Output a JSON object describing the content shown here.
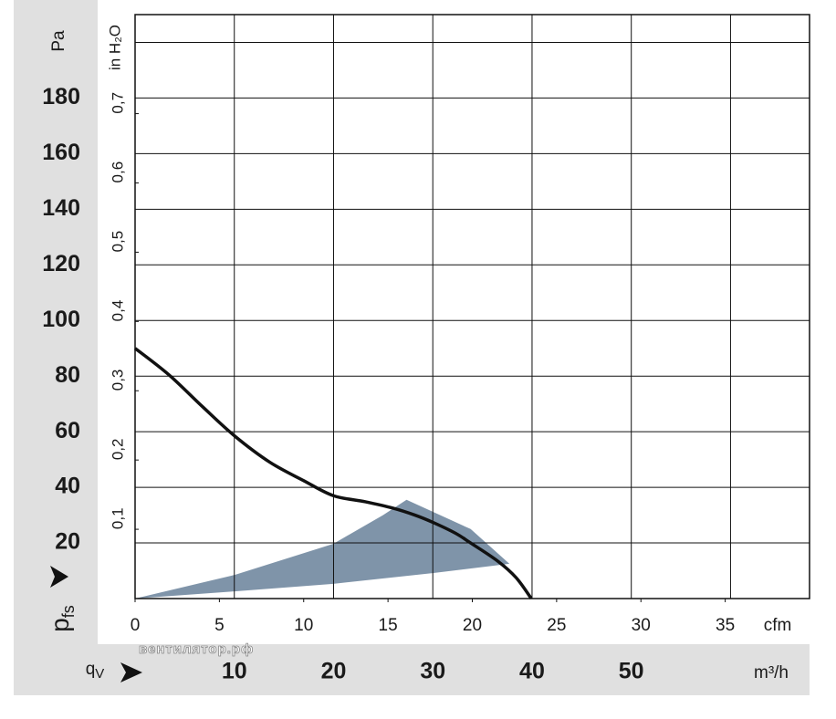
{
  "chart_data": {
    "type": "line",
    "y_unit": "Pa",
    "y2_unit": "in H₂O",
    "x_unit": "cfm",
    "x2_unit": "m³/h",
    "y_label": {
      "text": "p",
      "sub": "fs"
    },
    "x_label": {
      "text": "q",
      "sub": "V"
    },
    "watermark": "вентилятор.рф",
    "xlim": [
      0,
      40
    ],
    "xticks": [
      0,
      5,
      10,
      15,
      20,
      25,
      30,
      35
    ],
    "x2lim": [
      0,
      67.96
    ],
    "x2ticks": [
      10,
      20,
      30,
      40,
      50,
      {
        "value": 60,
        "label": null
      }
    ],
    "ylim": [
      0,
      210
    ],
    "yticks": [
      20,
      40,
      60,
      80,
      100,
      120,
      140,
      160,
      180,
      {
        "value": 200,
        "label": null
      }
    ],
    "y2lim": [
      0,
      0.843
    ],
    "y2ticks": [
      {
        "value": 0.1,
        "label": "0,1"
      },
      {
        "value": 0.2,
        "label": "0,2"
      },
      {
        "value": 0.3,
        "label": "0,3"
      },
      {
        "value": 0.4,
        "label": "0,4"
      },
      {
        "value": 0.5,
        "label": "0,5"
      },
      {
        "value": 0.6,
        "label": "0,6"
      },
      {
        "value": 0.7,
        "label": "0,7"
      }
    ],
    "grid": true,
    "series": [
      {
        "type": "area",
        "color": "#7f94a9",
        "x": [
          0,
          5.9,
          11.76,
          14.7,
          16.1,
          19.9,
          22.2,
          17.7,
          11.76,
          5.9,
          0
        ],
        "values": [
          0,
          8.5,
          19.7,
          30,
          35.5,
          25,
          12.5,
          9.2,
          5.3,
          2.6,
          0
        ]
      },
      {
        "type": "line",
        "color": "#111111",
        "x": [
          0,
          2,
          4,
          5.9,
          8,
          10,
          11.76,
          13.66,
          15.3,
          16.6,
          17.7,
          19,
          19.9,
          21.5,
          22.6,
          23.5
        ],
        "values": [
          90,
          80.5,
          69,
          58.5,
          49,
          42.4,
          37,
          34.8,
          32.5,
          30,
          27.3,
          23.5,
          20,
          13.5,
          7.5,
          0
        ]
      }
    ]
  }
}
